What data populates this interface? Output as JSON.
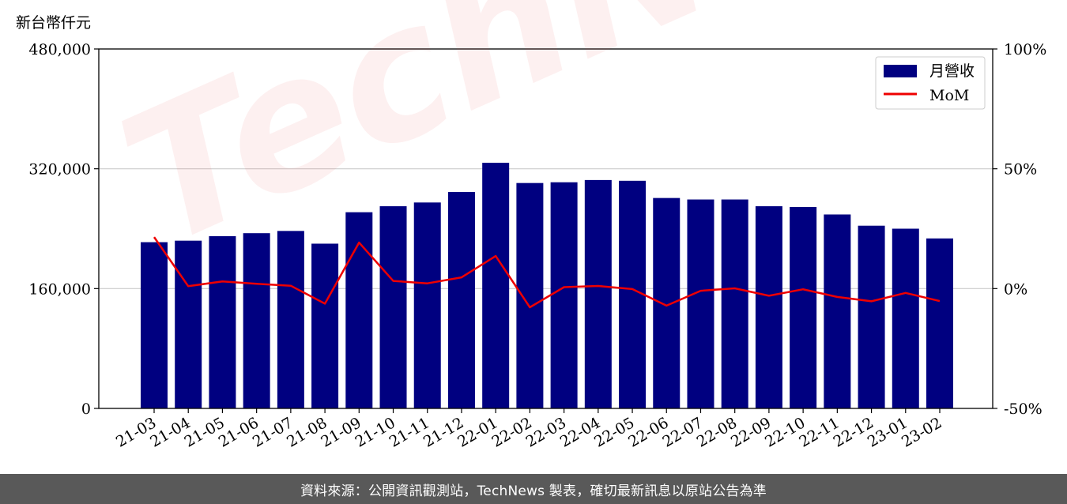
{
  "y_unit_label": "新台幣仟元",
  "footer": "資料來源：公開資訊觀測站，TechNews 製表，確切最新訊息以原站公告為準",
  "watermark": "TechNews",
  "colors": {
    "bar": "#000080",
    "line": "#ee0000",
    "grid": "#cccccc",
    "footer_bg": "#595959"
  },
  "chart_data": {
    "type": "bar",
    "categories": [
      "21-03",
      "21-04",
      "21-05",
      "21-06",
      "21-07",
      "21-08",
      "21-09",
      "21-10",
      "21-11",
      "21-12",
      "22-01",
      "22-02",
      "22-03",
      "22-04",
      "22-05",
      "22-06",
      "22-07",
      "22-08",
      "22-09",
      "22-10",
      "22-11",
      "22-12",
      "23-01",
      "23-02"
    ],
    "series": [
      {
        "name": "月營收",
        "type": "bar",
        "axis": "left",
        "values": [
          222000,
          224000,
          230000,
          234000,
          237000,
          220000,
          262000,
          270000,
          275000,
          289000,
          328000,
          301000,
          302000,
          305000,
          304000,
          281000,
          279000,
          279000,
          270000,
          269000,
          259000,
          244000,
          240000,
          227000
        ]
      },
      {
        "name": "MoM",
        "type": "line",
        "axis": "right",
        "values": [
          21.5,
          1.0,
          3.0,
          2.0,
          1.2,
          -6.3,
          19.2,
          3.2,
          2.2,
          4.7,
          13.6,
          -7.8,
          0.6,
          1.1,
          -0.2,
          -7.1,
          -0.9,
          0.1,
          -3.0,
          -0.3,
          -3.5,
          -5.3,
          -1.8,
          -5.2
        ]
      }
    ],
    "ylim_left": [
      0,
      480000
    ],
    "yticks_left": [
      0,
      160000,
      320000,
      480000
    ],
    "ytick_labels_left": [
      "0",
      "160,000",
      "320,000",
      "480,000"
    ],
    "ylim_right": [
      -50,
      100
    ],
    "yticks_right": [
      -50,
      0,
      50,
      100
    ],
    "ytick_labels_right": [
      "-50%",
      "0%",
      "50%",
      "100%"
    ],
    "grid": true,
    "legend": "top-right"
  }
}
